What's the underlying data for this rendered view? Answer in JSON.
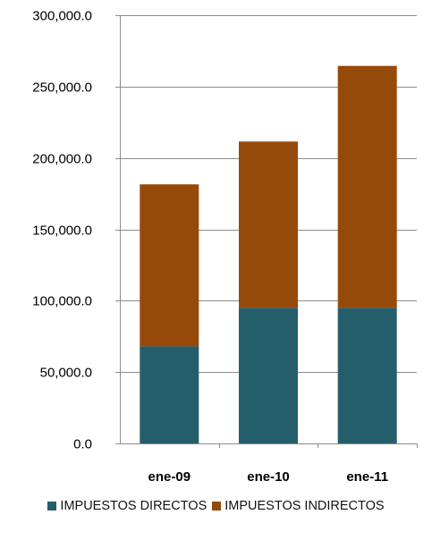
{
  "chart_data": {
    "type": "bar",
    "stacked": true,
    "categories": [
      "ene-09",
      "ene-10",
      "ene-11"
    ],
    "series": [
      {
        "name": "IMPUESTOS DIRECTOS",
        "values": [
          68000,
          95000,
          95000
        ],
        "color": "#255E6B"
      },
      {
        "name": "IMPUESTOS INDIRECTOS",
        "values": [
          113500,
          116500,
          169500
        ],
        "color": "#964A0A"
      }
    ],
    "yticks": [
      "0.0",
      "50,000.0",
      "100,000.0",
      "150,000.0",
      "200,000.0",
      "250,000.0",
      "300,000.0"
    ],
    "ylim": [
      0,
      300000
    ],
    "grid": true,
    "legend": "bottom"
  }
}
